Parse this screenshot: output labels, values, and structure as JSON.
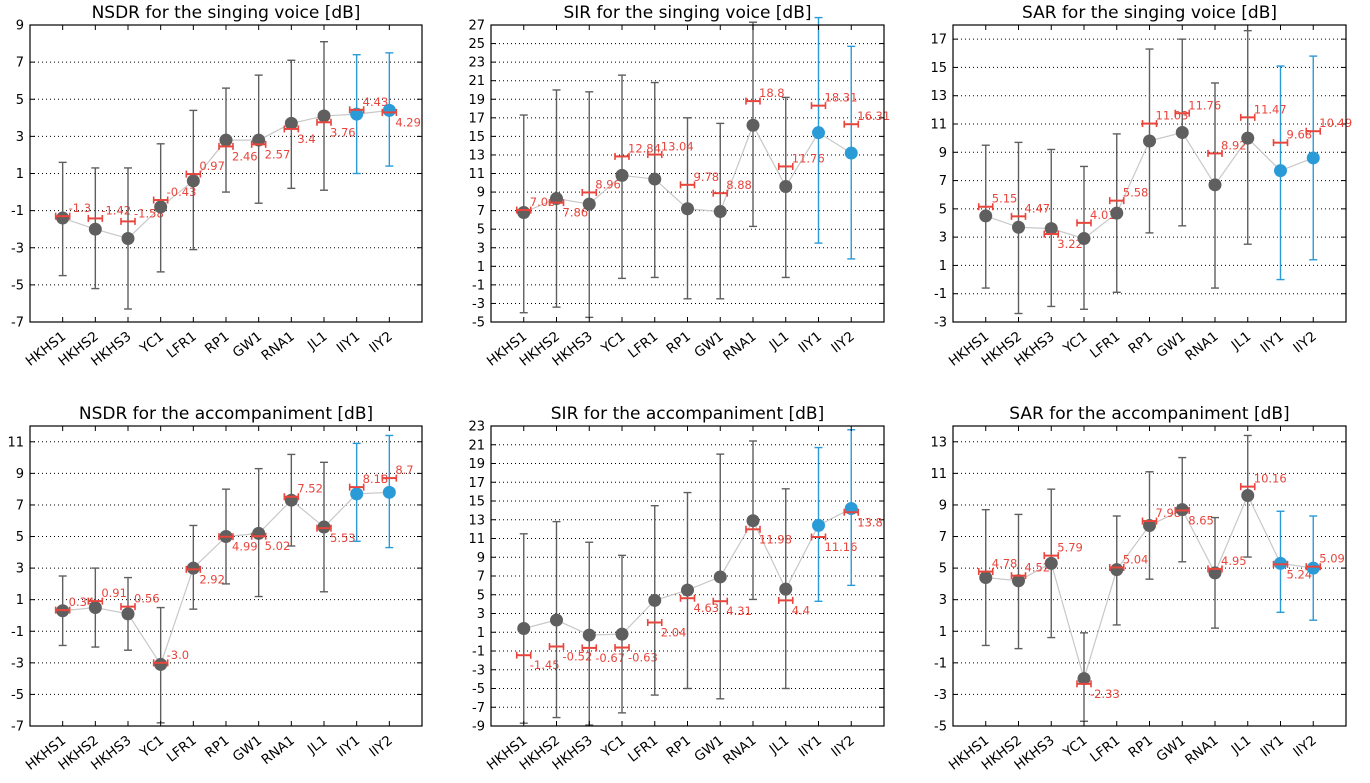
{
  "colors": {
    "gray_marker": "#5f5f5f",
    "blue_marker": "#2b9bd8",
    "median": "#e8453c",
    "connector": "#c8c8c8",
    "grid": "#000000"
  },
  "chart_data": [
    {
      "type": "scatter",
      "title": "NSDR for the singing voice [dB]",
      "categories": [
        "HKHS1",
        "HKHS2",
        "HKHS3",
        "YC1",
        "LFR1",
        "RP1",
        "GW1",
        "RNA1",
        "JL1",
        "IIY1",
        "IIY2"
      ],
      "ylim": [
        -7,
        9
      ],
      "yticks": [
        -7,
        -5,
        -3,
        -1,
        1,
        3,
        5,
        7,
        9
      ],
      "means": [
        -1.4,
        -2.0,
        -2.5,
        -0.8,
        0.6,
        2.8,
        2.8,
        3.7,
        4.1,
        4.2,
        4.4
      ],
      "lower": [
        -4.5,
        -5.2,
        -6.3,
        -4.3,
        -3.1,
        0.0,
        -0.6,
        0.2,
        0.1,
        1.0,
        1.4
      ],
      "upper": [
        1.6,
        1.3,
        1.3,
        2.6,
        4.4,
        5.6,
        6.3,
        7.1,
        8.1,
        7.4,
        7.5
      ],
      "medians": [
        -1.3,
        -1.42,
        -1.58,
        -0.43,
        0.97,
        2.46,
        2.57,
        3.4,
        3.76,
        4.43,
        4.29
      ],
      "median_labels": [
        "-1.3",
        "-1.42",
        "-1.58",
        "-0.43",
        "0.97",
        "2.46",
        "2.57",
        "3.4",
        "3.76",
        "4.43",
        "4.29"
      ],
      "highlighted": [
        9,
        10
      ],
      "grid": "horizontal dotted"
    },
    {
      "type": "scatter",
      "title": "SIR for the singing voice [dB]",
      "categories": [
        "HKHS1",
        "HKHS2",
        "HKHS3",
        "YC1",
        "LFR1",
        "RP1",
        "GW1",
        "RNA1",
        "JL1",
        "IIY1",
        "IIY2"
      ],
      "ylim": [
        -5,
        27
      ],
      "yticks": [
        -5,
        -3,
        -1,
        1,
        3,
        5,
        7,
        9,
        11,
        13,
        15,
        17,
        19,
        21,
        23,
        25,
        27
      ],
      "means": [
        6.8,
        8.3,
        7.7,
        10.8,
        10.4,
        7.2,
        6.9,
        16.2,
        9.6,
        15.4,
        13.2
      ],
      "lower": [
        -4.0,
        -3.4,
        -4.5,
        -0.3,
        -0.2,
        -2.5,
        -2.5,
        5.3,
        -0.2,
        3.5,
        1.8
      ],
      "upper": [
        17.3,
        20.0,
        19.8,
        21.6,
        20.8,
        17.0,
        16.4,
        27.3,
        19.2,
        27.8,
        24.7
      ],
      "medians": [
        7.06,
        7.86,
        8.96,
        12.84,
        13.04,
        9.78,
        8.88,
        18.8,
        11.76,
        18.31,
        16.31
      ],
      "median_labels": [
        "7.06",
        "7.86",
        "8.96",
        "12.84",
        "13.04",
        "9.78",
        "8.88",
        "18.8",
        "11.76",
        "18.31",
        "16.31"
      ],
      "highlighted": [
        9,
        10
      ],
      "grid": "horizontal dotted"
    },
    {
      "type": "scatter",
      "title": "SAR for the singing voice [dB]",
      "categories": [
        "HKHS1",
        "HKHS2",
        "HKHS3",
        "YC1",
        "LFR1",
        "RP1",
        "GW1",
        "RNA1",
        "JL1",
        "IIY1",
        "IIY2"
      ],
      "ylim": [
        -3,
        18
      ],
      "yticks": [
        -3,
        -1,
        1,
        3,
        5,
        7,
        9,
        11,
        13,
        15,
        17
      ],
      "means": [
        4.5,
        3.7,
        3.6,
        2.9,
        4.7,
        9.8,
        10.4,
        6.7,
        10.0,
        7.7,
        8.6
      ],
      "lower": [
        -0.6,
        -2.4,
        -1.9,
        -2.1,
        -0.9,
        3.3,
        3.8,
        -0.6,
        2.5,
        0.0,
        1.4
      ],
      "upper": [
        9.5,
        9.7,
        9.2,
        8.0,
        10.3,
        16.3,
        17.0,
        13.9,
        17.6,
        15.1,
        15.8
      ],
      "medians": [
        5.15,
        4.47,
        3.22,
        4.01,
        5.58,
        11.03,
        11.76,
        8.92,
        11.47,
        9.68,
        10.49
      ],
      "median_labels": [
        "5.15",
        "4.47",
        "3.22",
        "4.01",
        "5.58",
        "11.03",
        "11.76",
        "8.92",
        "11.47",
        "9.68",
        "10.49"
      ],
      "highlighted": [
        9,
        10
      ],
      "grid": "horizontal dotted"
    },
    {
      "type": "scatter",
      "title": "NSDR for the accompaniment [dB]",
      "categories": [
        "HKHS1",
        "HKHS2",
        "HKHS3",
        "YC1",
        "LFR1",
        "RP1",
        "GW1",
        "RNA1",
        "JL1",
        "IIY1",
        "IIY2"
      ],
      "ylim": [
        -7,
        12
      ],
      "yticks": [
        -7,
        -5,
        -3,
        -1,
        1,
        3,
        5,
        7,
        9,
        11
      ],
      "means": [
        0.3,
        0.5,
        0.1,
        -3.1,
        3.0,
        5.0,
        5.2,
        7.3,
        5.6,
        7.7,
        7.8
      ],
      "lower": [
        -1.9,
        -2.0,
        -2.2,
        -6.8,
        0.4,
        2.0,
        1.2,
        4.4,
        1.5,
        4.7,
        4.3
      ],
      "upper": [
        2.5,
        3.0,
        2.4,
        0.5,
        5.7,
        8.0,
        9.3,
        10.2,
        9.7,
        10.9,
        11.4
      ],
      "medians": [
        0.34,
        0.91,
        0.56,
        -3.0,
        2.92,
        4.99,
        5.02,
        7.52,
        5.53,
        8.13,
        8.7
      ],
      "median_labels": [
        "0.34",
        "0.91",
        "0.56",
        "-3.0",
        "2.92",
        "4.99",
        "5.02",
        "7.52",
        "5.53",
        "8.13",
        "8.7"
      ],
      "highlighted": [
        9,
        10
      ],
      "grid": "horizontal dotted"
    },
    {
      "type": "scatter",
      "title": "SIR for the accompaniment [dB]",
      "categories": [
        "HKHS1",
        "HKHS2",
        "HKHS3",
        "YC1",
        "LFR1",
        "RP1",
        "GW1",
        "RNA1",
        "JL1",
        "IIY1",
        "IIY2"
      ],
      "ylim": [
        -9,
        23
      ],
      "yticks": [
        -9,
        -7,
        -5,
        -3,
        -1,
        1,
        3,
        5,
        7,
        9,
        11,
        13,
        15,
        17,
        19,
        21,
        23
      ],
      "means": [
        1.4,
        2.3,
        0.7,
        0.8,
        4.4,
        5.5,
        6.9,
        12.9,
        5.6,
        12.4,
        14.2
      ],
      "lower": [
        -8.7,
        -8.1,
        -8.9,
        -7.6,
        -5.7,
        -5.0,
        -6.1,
        4.5,
        -5.0,
        4.3,
        6.0
      ],
      "upper": [
        11.5,
        12.8,
        10.6,
        9.2,
        14.5,
        15.9,
        20.0,
        21.4,
        16.3,
        20.7,
        22.6
      ],
      "medians": [
        -1.45,
        -0.52,
        -0.67,
        -0.63,
        2.04,
        4.63,
        4.31,
        11.98,
        4.4,
        11.16,
        13.8
      ],
      "median_labels": [
        "-1.45",
        "-0.52",
        "-0.67",
        "-0.63",
        "2.04",
        "4.63",
        "4.31",
        "11.98",
        "4.4",
        "11.16",
        "13.8"
      ],
      "highlighted": [
        9,
        10
      ],
      "grid": "horizontal dotted"
    },
    {
      "type": "scatter",
      "title": "SAR for the accompaniment [dB]",
      "categories": [
        "HKHS1",
        "HKHS2",
        "HKHS3",
        "YC1",
        "LFR1",
        "RP1",
        "GW1",
        "RNA1",
        "JL1",
        "IIY1",
        "IIY2"
      ],
      "ylim": [
        -5,
        14
      ],
      "yticks": [
        -5,
        -3,
        -1,
        1,
        3,
        5,
        7,
        9,
        11,
        13
      ],
      "means": [
        4.4,
        4.2,
        5.3,
        -2.0,
        4.9,
        7.7,
        8.7,
        4.7,
        9.6,
        5.3,
        5.0
      ],
      "lower": [
        0.1,
        -0.1,
        0.6,
        -4.7,
        1.4,
        4.3,
        5.4,
        1.2,
        5.7,
        2.2,
        1.7
      ],
      "upper": [
        8.7,
        8.4,
        10.0,
        0.9,
        8.3,
        11.1,
        12.0,
        8.2,
        13.4,
        8.6,
        8.3
      ],
      "medians": [
        4.78,
        4.52,
        5.79,
        -2.33,
        5.04,
        7.98,
        8.65,
        4.95,
        10.16,
        5.24,
        5.09
      ],
      "median_labels": [
        "4.78",
        "4.52",
        "5.79",
        "-2.33",
        "5.04",
        "7.98",
        "8.65",
        "4.95",
        "10.16",
        "5.24",
        "5.09"
      ],
      "highlighted": [
        9,
        10
      ],
      "grid": "horizontal dotted"
    }
  ]
}
